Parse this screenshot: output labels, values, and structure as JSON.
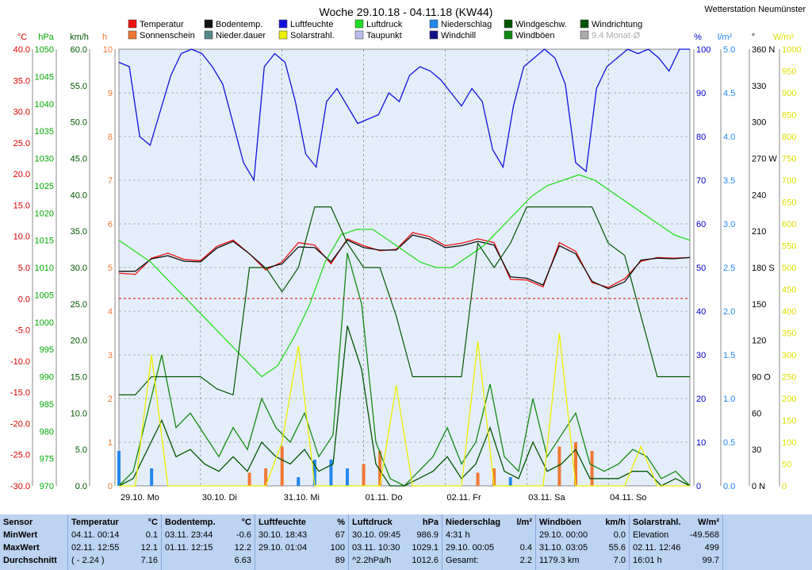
{
  "station": "Wetterstation Neumünster",
  "chart_data": {
    "type": "line",
    "title": "Woche 29.10.18 - 04.11.18 (KW44)",
    "legend": [
      {
        "name": "Temperatur",
        "color": "#ee1111"
      },
      {
        "name": "Bodentemp.",
        "color": "#111111"
      },
      {
        "name": "Luftfeuchte",
        "color": "#1111dd"
      },
      {
        "name": "Luftdruck",
        "color": "#22dd22"
      },
      {
        "name": "Niederschlag",
        "color": "#2288ee"
      },
      {
        "name": "Windgeschw.",
        "color": "#005500"
      },
      {
        "name": "Windrichtung",
        "color": "#005500"
      },
      {
        "name": "Sonnenschein",
        "color": "#ee7733"
      },
      {
        "name": "Nieder.dauer",
        "color": "#558888"
      },
      {
        "name": "Solarstrahl.",
        "color": "#eeee00"
      },
      {
        "name": "Taupunkt",
        "color": "#bbbbee"
      },
      {
        "name": "Windchill",
        "color": "#111188"
      },
      {
        "name": "Windböen",
        "color": "#118811"
      },
      {
        "name": "9.4 Monat-Ø",
        "color": "#aaaaaa"
      }
    ],
    "axes_left": [
      {
        "unit": "°C",
        "color": "#dd0000",
        "ticks": [
          "40.0",
          "35.0",
          "30.0",
          "25.0",
          "20.0",
          "15.0",
          "10.0",
          "5.0",
          "0.0",
          "-5.0",
          "-10.0",
          "-15.0",
          "-20.0",
          "-25.0",
          "-30.0"
        ]
      },
      {
        "unit": "hPa",
        "color": "#00aa00",
        "ticks": [
          "1050",
          "1045",
          "1040",
          "1035",
          "1030",
          "1025",
          "1020",
          "1015",
          "1010",
          "1005",
          "1000",
          "995",
          "990",
          "985",
          "980",
          "975",
          "970"
        ]
      },
      {
        "unit": "km/h",
        "color": "#005500",
        "ticks": [
          "60.0",
          "55.0",
          "50.0",
          "45.0",
          "40.0",
          "35.0",
          "30.0",
          "25.0",
          "20.0",
          "15.0",
          "10.0",
          "5.0",
          "0.0"
        ]
      },
      {
        "unit": "h",
        "color": "#ee7733",
        "ticks": [
          "10",
          "9",
          "8",
          "7",
          "6",
          "5",
          "4",
          "3",
          "2",
          "1",
          "0"
        ]
      }
    ],
    "axes_right": [
      {
        "unit": "%",
        "color": "#0000cc",
        "ticks": [
          "100",
          "90",
          "80",
          "70",
          "60",
          "50",
          "40",
          "30",
          "20",
          "10",
          "0"
        ]
      },
      {
        "unit": "l/m²",
        "color": "#2288ee",
        "ticks": [
          "5.0",
          "4.5",
          "4.0",
          "3.5",
          "3.0",
          "2.5",
          "2.0",
          "1.5",
          "1.0",
          "0.5",
          "0.0"
        ]
      },
      {
        "unit": "°",
        "color": "#000000",
        "ticks": [
          "360 N",
          "330",
          "300",
          "270 W",
          "240",
          "210",
          "180 S",
          "150",
          "120",
          "90 O",
          "60",
          "30",
          "0 N"
        ]
      },
      {
        "unit": "W/m²",
        "color": "#dddd00",
        "ticks": [
          "1000",
          "950",
          "900",
          "850",
          "800",
          "750",
          "700",
          "650",
          "600",
          "550",
          "500",
          "450",
          "400",
          "350",
          "300",
          "250",
          "200",
          "150",
          "100",
          "50",
          "0"
        ]
      }
    ],
    "x_labels": [
      "29.10. Mo",
      "30.10. Di",
      "31.10. Mi",
      "01.11. Do",
      "02.11. Fr",
      "03.11. Sa",
      "04.11. So"
    ],
    "series": [
      {
        "name": "Luftfeuchte",
        "unit": "%",
        "values": [
          97,
          96,
          80,
          78,
          86,
          94,
          99,
          100,
          99,
          96,
          92,
          83,
          74,
          70,
          96,
          99,
          97,
          88,
          76,
          73,
          88,
          91,
          87,
          83,
          84,
          85,
          90,
          88,
          94,
          96,
          95,
          93,
          90,
          87,
          91,
          88,
          77,
          73,
          87,
          96,
          98,
          100,
          98,
          92,
          74,
          72,
          91,
          96,
          98,
          100,
          99,
          100,
          98,
          95,
          100,
          100
        ]
      },
      {
        "name": "Temperatur",
        "unit": "°C",
        "values": [
          4.1,
          3.9,
          6.5,
          7.3,
          6.3,
          6.1,
          8.4,
          9.4,
          7.2,
          4.6,
          5.9,
          9.0,
          8.6,
          5.6,
          9.6,
          8.5,
          7.7,
          7.9,
          10.6,
          10.0,
          8.5,
          8.9,
          9.6,
          9.0,
          3.1,
          3.0,
          1.9,
          9.0,
          7.6,
          2.6,
          1.8,
          3.2,
          6.0,
          6.6,
          6.5,
          6.6
        ]
      },
      {
        "name": "Bodentemp.",
        "unit": "°C",
        "values": [
          4.4,
          4.4,
          6.4,
          6.9,
          6.0,
          5.9,
          8.1,
          9.2,
          7.2,
          4.9,
          5.6,
          8.3,
          8.2,
          5.9,
          9.4,
          8.2,
          7.8,
          7.8,
          10.2,
          9.6,
          8.2,
          8.5,
          9.2,
          8.6,
          3.5,
          3.3,
          2.2,
          8.5,
          7.2,
          2.8,
          1.6,
          2.7,
          6.2,
          6.5,
          6.4,
          6.6
        ]
      },
      {
        "name": "Luftdruck",
        "unit": "hPa",
        "values": [
          1015,
          1013,
          1011,
          1008,
          1005,
          1002,
          999,
          996,
          993,
          990,
          992,
          997,
          1003,
          1011,
          1016,
          1017,
          1017,
          1015,
          1013,
          1011,
          1010,
          1010,
          1012,
          1014,
          1017,
          1020,
          1023,
          1025,
          1026,
          1027,
          1026,
          1024,
          1022,
          1020,
          1018,
          1016,
          1015
        ]
      },
      {
        "name": "Windböen",
        "unit": "km/h",
        "values": [
          0,
          2,
          10,
          18,
          8,
          10,
          7,
          4,
          8,
          5,
          12,
          8,
          6,
          10,
          4,
          7,
          32,
          25,
          6,
          1,
          0,
          2,
          4,
          8,
          3,
          6,
          14,
          4,
          2,
          12,
          4,
          7,
          10,
          3,
          2,
          3,
          5,
          4,
          1,
          2,
          0
        ]
      },
      {
        "name": "Windgeschw.",
        "unit": "km/h",
        "values": [
          0,
          1,
          5,
          9,
          4,
          5,
          3,
          2,
          4,
          2,
          6,
          4,
          3,
          5,
          2,
          3,
          22,
          16,
          3,
          0,
          0,
          1,
          2,
          4,
          1,
          3,
          8,
          2,
          1,
          6,
          2,
          3,
          5,
          1,
          1,
          1,
          2,
          2,
          0,
          1,
          0
        ]
      },
      {
        "name": "Windrichtung",
        "unit": "°",
        "values": [
          75,
          75,
          90,
          90,
          90,
          90,
          80,
          75,
          180,
          180,
          160,
          180,
          230,
          230,
          200,
          180,
          180,
          140,
          90,
          90,
          90,
          90,
          200,
          180,
          200,
          230,
          230,
          230,
          230,
          230,
          200,
          190,
          140,
          90,
          90,
          90
        ]
      },
      {
        "name": "Solarstrahl.",
        "unit": "W/m²",
        "values": [
          0,
          0,
          300,
          0,
          0,
          0,
          0,
          0,
          0,
          0,
          100,
          320,
          0,
          0,
          0,
          0,
          0,
          230,
          0,
          0,
          0,
          0,
          330,
          0,
          0,
          0,
          0,
          350,
          0,
          0,
          0,
          0,
          90,
          0,
          0,
          0
        ]
      },
      {
        "name": "Sonnenschein",
        "unit": "h",
        "values": [
          0,
          0,
          0,
          0,
          0,
          0,
          0,
          0,
          0.3,
          0.4,
          0.9,
          0,
          0,
          0,
          0.2,
          0.5,
          0.8,
          0,
          0,
          0,
          0,
          0,
          0.3,
          0.4,
          0,
          0,
          0,
          0.9,
          1.0,
          0.8,
          0,
          0,
          0,
          0,
          0,
          0
        ]
      },
      {
        "name": "Niederschlag",
        "unit": "l/m²",
        "values": [
          0.4,
          0,
          0.2,
          0,
          0,
          0,
          0,
          0,
          0,
          0,
          0,
          0.1,
          0.3,
          0.3,
          0.2,
          0,
          0,
          0,
          0,
          0,
          0,
          0,
          0,
          0,
          0.1,
          0,
          0,
          0,
          0,
          0,
          0,
          0,
          0,
          0,
          0,
          0
        ]
      }
    ]
  },
  "stats": {
    "sensor": {
      "h": "Sensor",
      "rows": [
        "MinWert",
        "MaxWert",
        "Durchschnitt"
      ]
    },
    "temperatur": {
      "h": "Temperatur",
      "u": "°C",
      "rows": [
        [
          "04.11.  00:14",
          "0.1"
        ],
        [
          "02.11.  12:55",
          "12.1"
        ],
        [
          "( - 2.24 )",
          "7.16"
        ]
      ]
    },
    "bodentemp": {
      "h": "Bodentemp.",
      "u": "°C",
      "rows": [
        [
          "03.11.  23:44",
          "-0.6"
        ],
        [
          "01.11.  12:15",
          "12.2"
        ],
        [
          "",
          "6.63"
        ]
      ]
    },
    "luftfeuchte": {
      "h": "Luftfeuchte",
      "u": "%",
      "rows": [
        [
          "30.10.  18:43",
          "67"
        ],
        [
          "29.10.  01:04",
          "100"
        ],
        [
          "",
          "89"
        ]
      ]
    },
    "luftdruck": {
      "h": "Luftdruck",
      "u": "hPa",
      "rows": [
        [
          "30.10.  09:45",
          "986.9"
        ],
        [
          "03.11.  10:30",
          "1029.1"
        ],
        [
          "^2.2hPa/h",
          "1012.6"
        ]
      ]
    },
    "niederschlag": {
      "h": "Niederschlag",
      "u": "l/m²",
      "rows": [
        [
          "4:31 h",
          ""
        ],
        [
          "29.10.  00:05",
          "0.4"
        ],
        [
          "Gesamt:",
          "2.2"
        ]
      ]
    },
    "windboeen": {
      "h": "Windböen",
      "u": "km/h",
      "rows": [
        [
          "29.10.  00:00",
          "0.0"
        ],
        [
          "31.10.  03:05",
          "55.6"
        ],
        [
          "1179.3 km",
          "7.0"
        ]
      ]
    },
    "solar": {
      "h": "Solarstrahl.",
      "u": "W/m²",
      "rows": [
        [
          "Elevation",
          "-49.568"
        ],
        [
          "02.11.  12:46",
          "499"
        ],
        [
          "16:01 h",
          "99.7"
        ]
      ]
    }
  }
}
